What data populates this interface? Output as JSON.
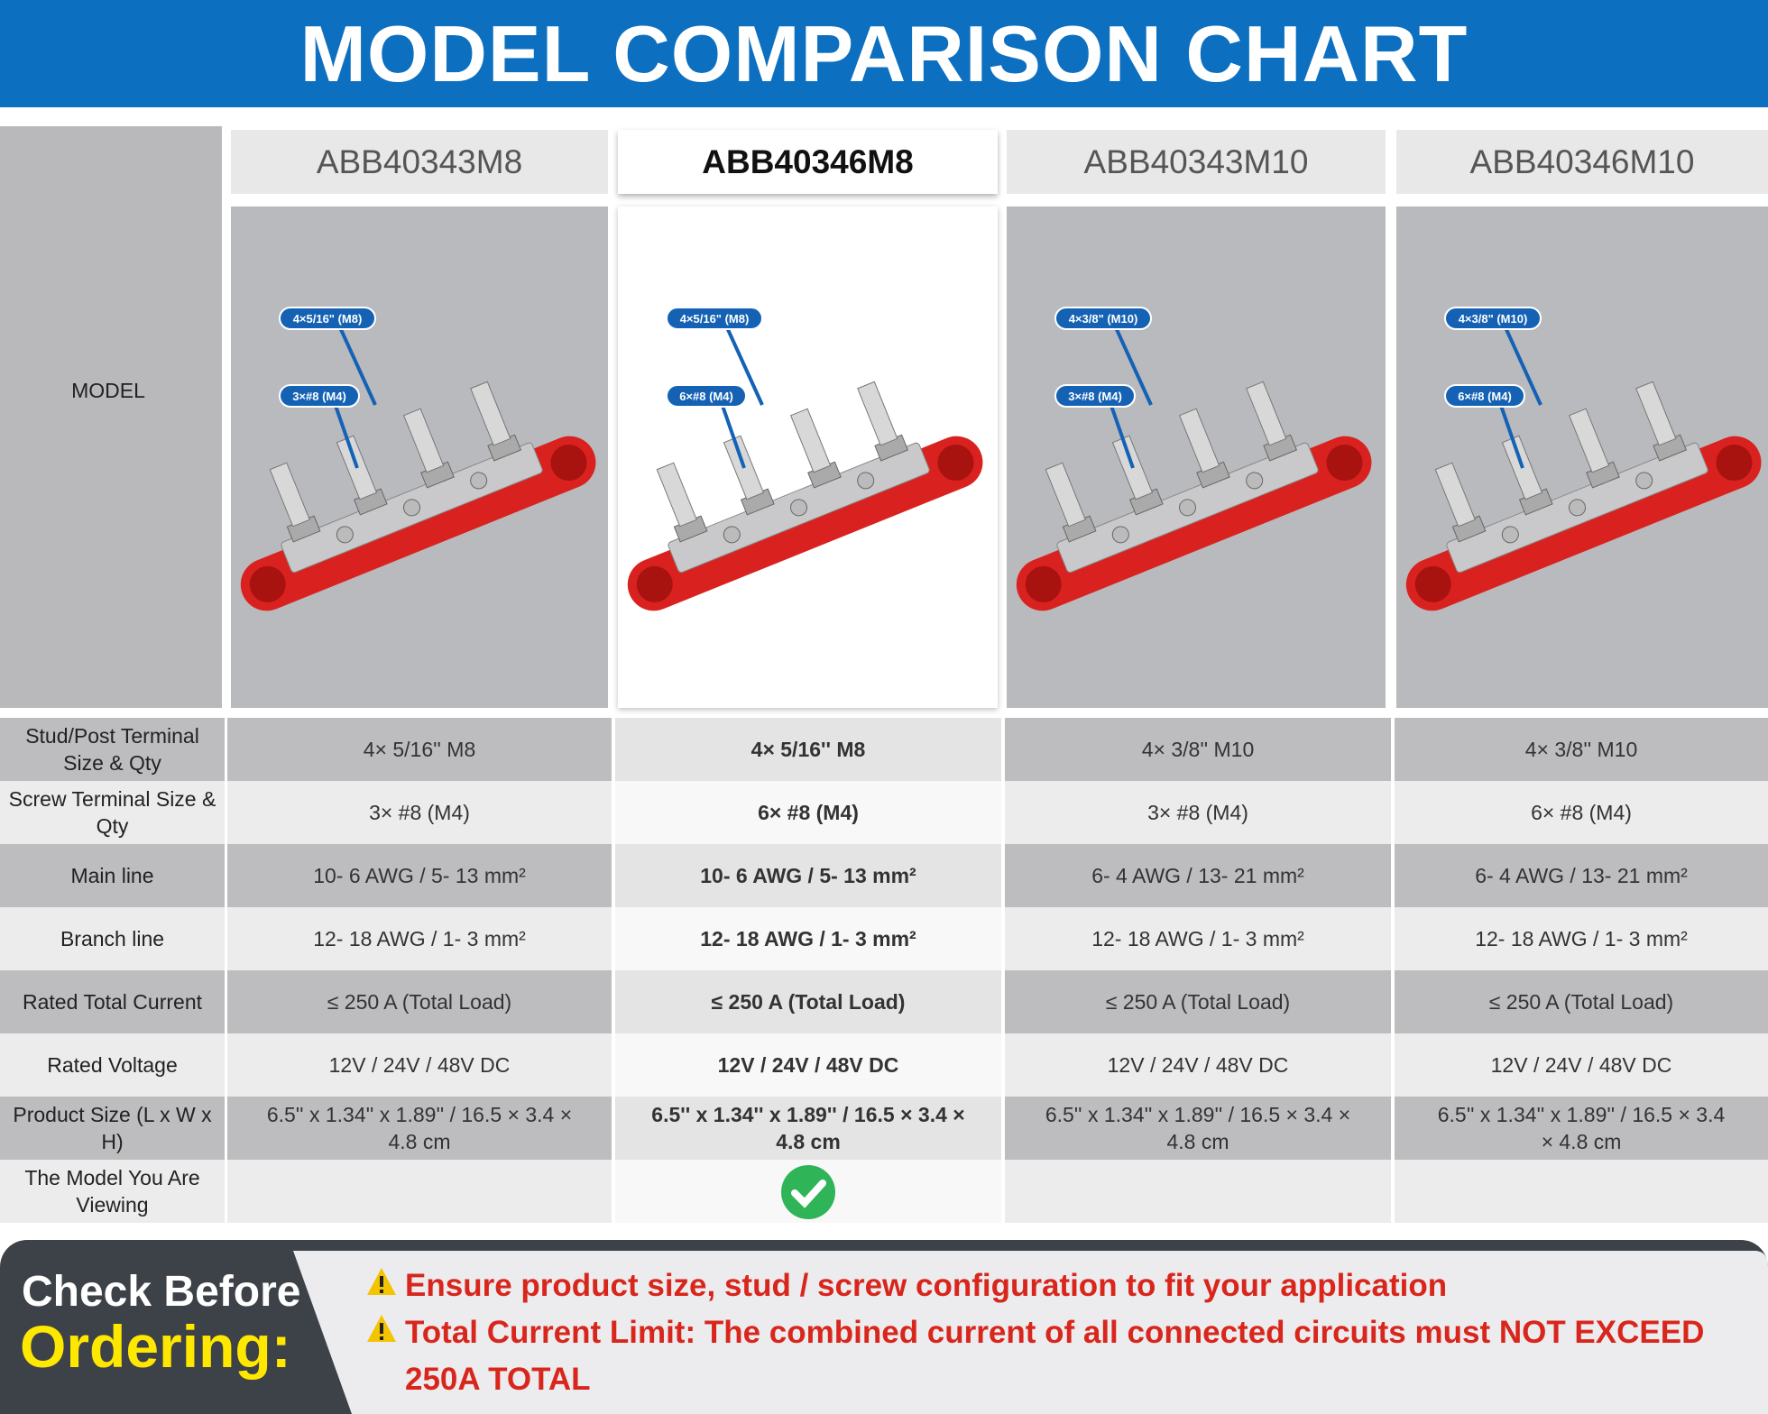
{
  "header": {
    "title": "MODEL COMPARISON CHART"
  },
  "table": {
    "model_label": "MODEL",
    "models": [
      {
        "name": "ABB40343M8",
        "callouts": [
          "4×5/16\" (M8)",
          "3×#8 (M4)"
        ]
      },
      {
        "name": "ABB40346M8",
        "callouts": [
          "4×5/16\" (M8)",
          "6×#8 (M4)"
        ]
      },
      {
        "name": "ABB40343M10",
        "callouts": [
          "4×3/8\" (M10)",
          "3×#8 (M4)"
        ]
      },
      {
        "name": "ABB40346M10",
        "callouts": [
          "4×3/8\" (M10)",
          "6×#8 (M4)"
        ]
      }
    ],
    "rows": [
      {
        "label": "Stud/Post Terminal Size & Qty",
        "cells": [
          "4× 5/16'' M8",
          "4× 5/16'' M8",
          "4× 3/8'' M10",
          "4× 3/8'' M10"
        ]
      },
      {
        "label": "Screw Terminal Size & Qty",
        "cells": [
          "3× #8 (M4)",
          "6× #8 (M4)",
          "3× #8 (M4)",
          "6× #8 (M4)"
        ]
      },
      {
        "label": "Main line",
        "cells": [
          "10- 6 AWG / 5- 13 mm²",
          "10- 6 AWG / 5- 13 mm²",
          "6- 4 AWG / 13- 21 mm²",
          "6- 4 AWG / 13- 21 mm²"
        ]
      },
      {
        "label": "Branch line",
        "cells": [
          "12- 18 AWG / 1- 3 mm²",
          "12- 18 AWG / 1- 3 mm²",
          "12- 18 AWG / 1- 3 mm²",
          "12- 18 AWG / 1- 3 mm²"
        ]
      },
      {
        "label": "Rated Total Current",
        "cells": [
          "≤ 250 A (Total Load)",
          "≤ 250 A (Total Load)",
          "≤ 250 A (Total Load)",
          "≤ 250 A (Total Load)"
        ]
      },
      {
        "label": "Rated Voltage",
        "cells": [
          "12V / 24V / 48V DC",
          "12V / 24V / 48V DC",
          "12V / 24V / 48V DC",
          "12V / 24V / 48V DC"
        ]
      },
      {
        "label": "Product Size (L x W x H)",
        "cells": [
          "6.5''  x 1.34''  x 1.89'' / 16.5 × 3.4 × 4.8 cm",
          "6.5''  x 1.34''  x 1.89'' / 16.5 × 3.4 × 4.8 cm",
          "6.5''  x 1.34''  x 1.89'' / 16.5 × 3.4 × 4.8 cm",
          "6.5''  x 1.34''  x 1.89'' / 16.5 × 3.4 × 4.8 cm"
        ]
      },
      {
        "label": "The Model You Are Viewing",
        "cells": [
          "",
          "",
          "",
          ""
        ]
      }
    ]
  },
  "footer": {
    "heading_1": "Check Before",
    "heading_2": "Ordering:",
    "warnings": [
      "Ensure product size, stud / screw configuration to fit your application",
      "Total Current Limit: The combined current of all connected circuits must NOT EXCEED 250A TOTAL"
    ]
  }
}
